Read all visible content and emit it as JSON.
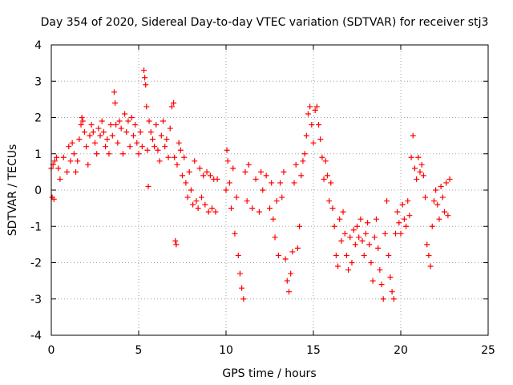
{
  "chart_data": {
    "type": "scatter",
    "title": "Day 354 of 2020, Sidereal Day-to-day VTEC variation (SDTVAR) for receiver stj3",
    "xlabel": "GPS time / hours",
    "ylabel": "SDTVAR / TECUs",
    "xlim": [
      0,
      25
    ],
    "ylim": [
      -4,
      4
    ],
    "xticks": [
      0,
      5,
      10,
      15,
      20,
      25
    ],
    "yticks": [
      -4,
      -3,
      -2,
      -1,
      0,
      1,
      2,
      3,
      4
    ],
    "grid": true,
    "marker": "plus",
    "color": "#ff0000",
    "series": [
      {
        "name": "stj3",
        "points": [
          [
            0.0,
            0.6
          ],
          [
            0.05,
            -0.2
          ],
          [
            0.1,
            0.7
          ],
          [
            0.15,
            -0.25
          ],
          [
            0.2,
            0.8
          ],
          [
            0.3,
            0.9
          ],
          [
            0.4,
            0.6
          ],
          [
            0.5,
            0.3
          ],
          [
            0.7,
            0.9
          ],
          [
            0.9,
            0.5
          ],
          [
            1.0,
            1.2
          ],
          [
            1.1,
            0.8
          ],
          [
            1.2,
            1.3
          ],
          [
            1.3,
            1.0
          ],
          [
            1.4,
            0.5
          ],
          [
            1.5,
            0.8
          ],
          [
            1.6,
            1.4
          ],
          [
            1.7,
            1.8
          ],
          [
            1.75,
            2.0
          ],
          [
            1.8,
            1.9
          ],
          [
            1.9,
            1.6
          ],
          [
            2.0,
            1.2
          ],
          [
            2.1,
            0.7
          ],
          [
            2.2,
            1.5
          ],
          [
            2.3,
            1.8
          ],
          [
            2.4,
            1.6
          ],
          [
            2.5,
            1.3
          ],
          [
            2.6,
            1.0
          ],
          [
            2.7,
            1.7
          ],
          [
            2.8,
            1.5
          ],
          [
            2.9,
            1.9
          ],
          [
            3.0,
            1.6
          ],
          [
            3.1,
            1.2
          ],
          [
            3.2,
            1.4
          ],
          [
            3.3,
            1.0
          ],
          [
            3.4,
            1.8
          ],
          [
            3.5,
            1.5
          ],
          [
            3.6,
            2.7
          ],
          [
            3.65,
            2.4
          ],
          [
            3.7,
            1.8
          ],
          [
            3.8,
            1.3
          ],
          [
            3.9,
            1.9
          ],
          [
            4.0,
            1.7
          ],
          [
            4.1,
            1.0
          ],
          [
            4.2,
            2.1
          ],
          [
            4.3,
            1.6
          ],
          [
            4.4,
            1.9
          ],
          [
            4.5,
            1.2
          ],
          [
            4.6,
            2.0
          ],
          [
            4.7,
            1.5
          ],
          [
            4.8,
            1.8
          ],
          [
            4.9,
            1.3
          ],
          [
            5.0,
            1.0
          ],
          [
            5.1,
            1.6
          ],
          [
            5.2,
            1.2
          ],
          [
            5.3,
            3.3
          ],
          [
            5.35,
            3.1
          ],
          [
            5.4,
            2.9
          ],
          [
            5.45,
            2.3
          ],
          [
            5.5,
            1.1
          ],
          [
            5.55,
            0.1
          ],
          [
            5.6,
            1.9
          ],
          [
            5.7,
            1.6
          ],
          [
            5.8,
            1.4
          ],
          [
            5.9,
            1.2
          ],
          [
            6.0,
            1.8
          ],
          [
            6.1,
            1.1
          ],
          [
            6.2,
            0.8
          ],
          [
            6.3,
            1.5
          ],
          [
            6.4,
            1.9
          ],
          [
            6.5,
            1.2
          ],
          [
            6.6,
            1.4
          ],
          [
            6.7,
            0.9
          ],
          [
            6.8,
            1.7
          ],
          [
            6.9,
            2.3
          ],
          [
            7.0,
            2.4
          ],
          [
            7.05,
            0.9
          ],
          [
            7.1,
            -1.4
          ],
          [
            7.15,
            -1.5
          ],
          [
            7.2,
            0.7
          ],
          [
            7.3,
            1.3
          ],
          [
            7.4,
            1.1
          ],
          [
            7.5,
            0.4
          ],
          [
            7.6,
            0.9
          ],
          [
            7.7,
            0.2
          ],
          [
            7.8,
            -0.2
          ],
          [
            7.9,
            0.5
          ],
          [
            8.0,
            0.0
          ],
          [
            8.1,
            -0.4
          ],
          [
            8.2,
            0.8
          ],
          [
            8.3,
            -0.3
          ],
          [
            8.4,
            -0.5
          ],
          [
            8.5,
            0.6
          ],
          [
            8.6,
            -0.2
          ],
          [
            8.7,
            0.4
          ],
          [
            8.8,
            -0.4
          ],
          [
            8.9,
            0.5
          ],
          [
            9.0,
            -0.6
          ],
          [
            9.1,
            0.4
          ],
          [
            9.2,
            -0.5
          ],
          [
            9.3,
            0.3
          ],
          [
            9.4,
            -0.6
          ],
          [
            9.5,
            0.3
          ],
          [
            10.0,
            0.0
          ],
          [
            10.05,
            1.1
          ],
          [
            10.1,
            0.8
          ],
          [
            10.2,
            0.2
          ],
          [
            10.3,
            -0.5
          ],
          [
            10.4,
            0.6
          ],
          [
            10.5,
            -1.2
          ],
          [
            10.6,
            -0.2
          ],
          [
            10.7,
            -1.8
          ],
          [
            10.8,
            -2.3
          ],
          [
            10.9,
            -2.7
          ],
          [
            11.0,
            -3.0
          ],
          [
            11.1,
            0.5
          ],
          [
            11.2,
            -0.3
          ],
          [
            11.3,
            0.7
          ],
          [
            11.5,
            -0.5
          ],
          [
            11.7,
            0.3
          ],
          [
            11.9,
            -0.6
          ],
          [
            12.0,
            0.5
          ],
          [
            12.1,
            0.0
          ],
          [
            12.3,
            0.4
          ],
          [
            12.5,
            -0.5
          ],
          [
            12.6,
            0.2
          ],
          [
            12.7,
            -0.8
          ],
          [
            12.8,
            -1.3
          ],
          [
            12.9,
            -0.3
          ],
          [
            13.0,
            -1.8
          ],
          [
            13.1,
            0.2
          ],
          [
            13.2,
            -0.2
          ],
          [
            13.3,
            0.5
          ],
          [
            13.4,
            -1.9
          ],
          [
            13.5,
            -2.5
          ],
          [
            13.6,
            -2.8
          ],
          [
            13.7,
            -2.3
          ],
          [
            13.8,
            -1.7
          ],
          [
            13.9,
            0.2
          ],
          [
            14.0,
            0.7
          ],
          [
            14.1,
            -1.6
          ],
          [
            14.2,
            -1.0
          ],
          [
            14.3,
            0.4
          ],
          [
            14.4,
            0.8
          ],
          [
            14.5,
            1.0
          ],
          [
            14.6,
            1.5
          ],
          [
            14.7,
            2.1
          ],
          [
            14.8,
            2.3
          ],
          [
            14.9,
            1.8
          ],
          [
            15.0,
            1.3
          ],
          [
            15.1,
            2.2
          ],
          [
            15.2,
            2.3
          ],
          [
            15.3,
            1.8
          ],
          [
            15.4,
            1.4
          ],
          [
            15.5,
            0.9
          ],
          [
            15.6,
            0.3
          ],
          [
            15.7,
            0.8
          ],
          [
            15.8,
            0.4
          ],
          [
            15.9,
            -0.3
          ],
          [
            16.0,
            0.2
          ],
          [
            16.1,
            -0.5
          ],
          [
            16.2,
            -1.0
          ],
          [
            16.3,
            -1.8
          ],
          [
            16.4,
            -2.1
          ],
          [
            16.5,
            -0.8
          ],
          [
            16.6,
            -1.4
          ],
          [
            16.7,
            -0.6
          ],
          [
            16.8,
            -1.2
          ],
          [
            16.9,
            -1.8
          ],
          [
            17.0,
            -2.2
          ],
          [
            17.1,
            -1.3
          ],
          [
            17.2,
            -2.0
          ],
          [
            17.3,
            -1.1
          ],
          [
            17.4,
            -1.5
          ],
          [
            17.5,
            -1.0
          ],
          [
            17.6,
            -1.3
          ],
          [
            17.7,
            -0.8
          ],
          [
            17.8,
            -1.4
          ],
          [
            17.9,
            -1.8
          ],
          [
            18.0,
            -1.2
          ],
          [
            18.1,
            -0.9
          ],
          [
            18.2,
            -1.5
          ],
          [
            18.3,
            -2.0
          ],
          [
            18.4,
            -2.5
          ],
          [
            18.5,
            -1.3
          ],
          [
            18.6,
            -0.8
          ],
          [
            18.7,
            -1.6
          ],
          [
            18.8,
            -2.2
          ],
          [
            18.9,
            -2.6
          ],
          [
            19.0,
            -3.0
          ],
          [
            19.1,
            -1.2
          ],
          [
            19.2,
            -0.3
          ],
          [
            19.3,
            -1.8
          ],
          [
            19.4,
            -2.4
          ],
          [
            19.5,
            -2.8
          ],
          [
            19.6,
            -3.0
          ],
          [
            19.7,
            -1.2
          ],
          [
            19.8,
            -0.6
          ],
          [
            19.9,
            -0.9
          ],
          [
            20.0,
            -1.2
          ],
          [
            20.1,
            -0.4
          ],
          [
            20.2,
            -0.8
          ],
          [
            20.3,
            -1.0
          ],
          [
            20.4,
            -0.3
          ],
          [
            20.5,
            -0.7
          ],
          [
            20.6,
            0.9
          ],
          [
            20.7,
            1.5
          ],
          [
            20.8,
            0.6
          ],
          [
            20.9,
            0.3
          ],
          [
            21.0,
            0.9
          ],
          [
            21.1,
            0.5
          ],
          [
            21.2,
            0.7
          ],
          [
            21.3,
            0.4
          ],
          [
            21.4,
            -0.2
          ],
          [
            21.5,
            -1.5
          ],
          [
            21.6,
            -1.8
          ],
          [
            21.7,
            -2.1
          ],
          [
            21.8,
            -1.0
          ],
          [
            21.9,
            -0.3
          ],
          [
            22.0,
            0.0
          ],
          [
            22.1,
            -0.4
          ],
          [
            22.2,
            -0.8
          ],
          [
            22.3,
            0.1
          ],
          [
            22.4,
            -0.2
          ],
          [
            22.5,
            -0.6
          ],
          [
            22.6,
            0.2
          ],
          [
            22.7,
            -0.7
          ],
          [
            22.8,
            0.3
          ]
        ]
      }
    ]
  }
}
